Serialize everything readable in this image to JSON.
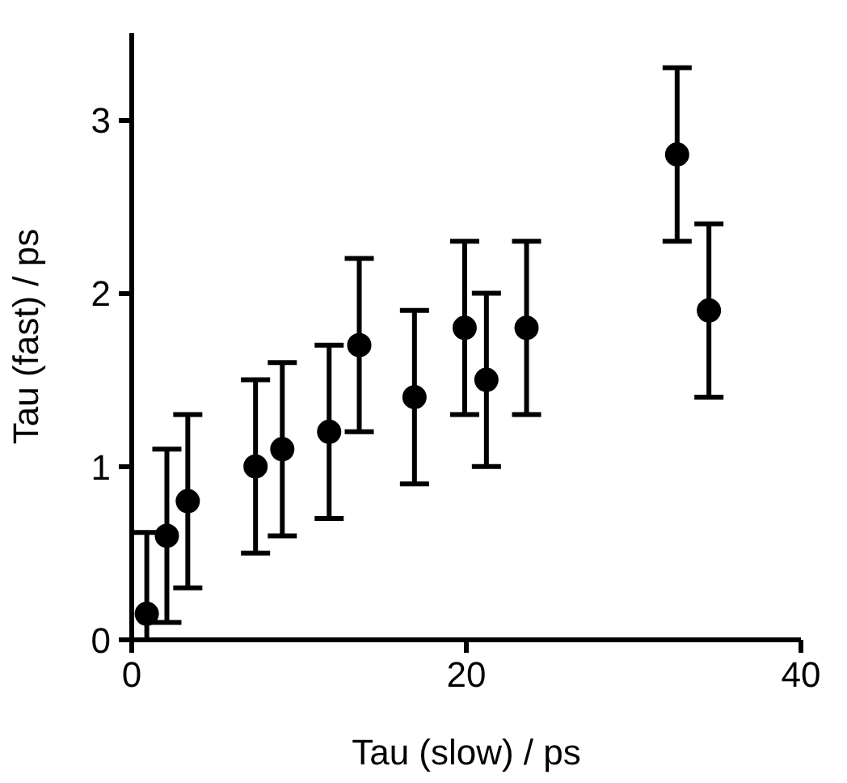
{
  "chart_data": {
    "type": "scatter",
    "xlabel": "Tau (slow) / ps",
    "ylabel": "Tau (fast) / ps",
    "x": [
      0.9,
      2.1,
      3.35,
      7.4,
      9.0,
      11.8,
      13.6,
      16.9,
      19.9,
      21.2,
      23.6,
      32.6,
      34.5
    ],
    "series": [
      {
        "color": "#000000",
        "values": [
          0.15,
          0.6,
          0.8,
          1.0,
          1.1,
          1.2,
          1.7,
          1.4,
          1.8,
          1.5,
          1.8,
          2.8,
          1.9
        ],
        "errors": [
          [
            0,
            0.62
          ],
          0.5,
          0.5,
          0.5,
          0.5,
          0.5,
          0.5,
          0.5,
          0.5,
          0.5,
          0.5,
          0.5,
          0.5
        ]
      }
    ],
    "xlim": [
      0,
      40
    ],
    "ylim": [
      0,
      3.5
    ],
    "xticks": [
      0,
      20,
      40
    ],
    "yticks": [
      0,
      1,
      2,
      3
    ],
    "marker": "circle",
    "grid": false
  }
}
